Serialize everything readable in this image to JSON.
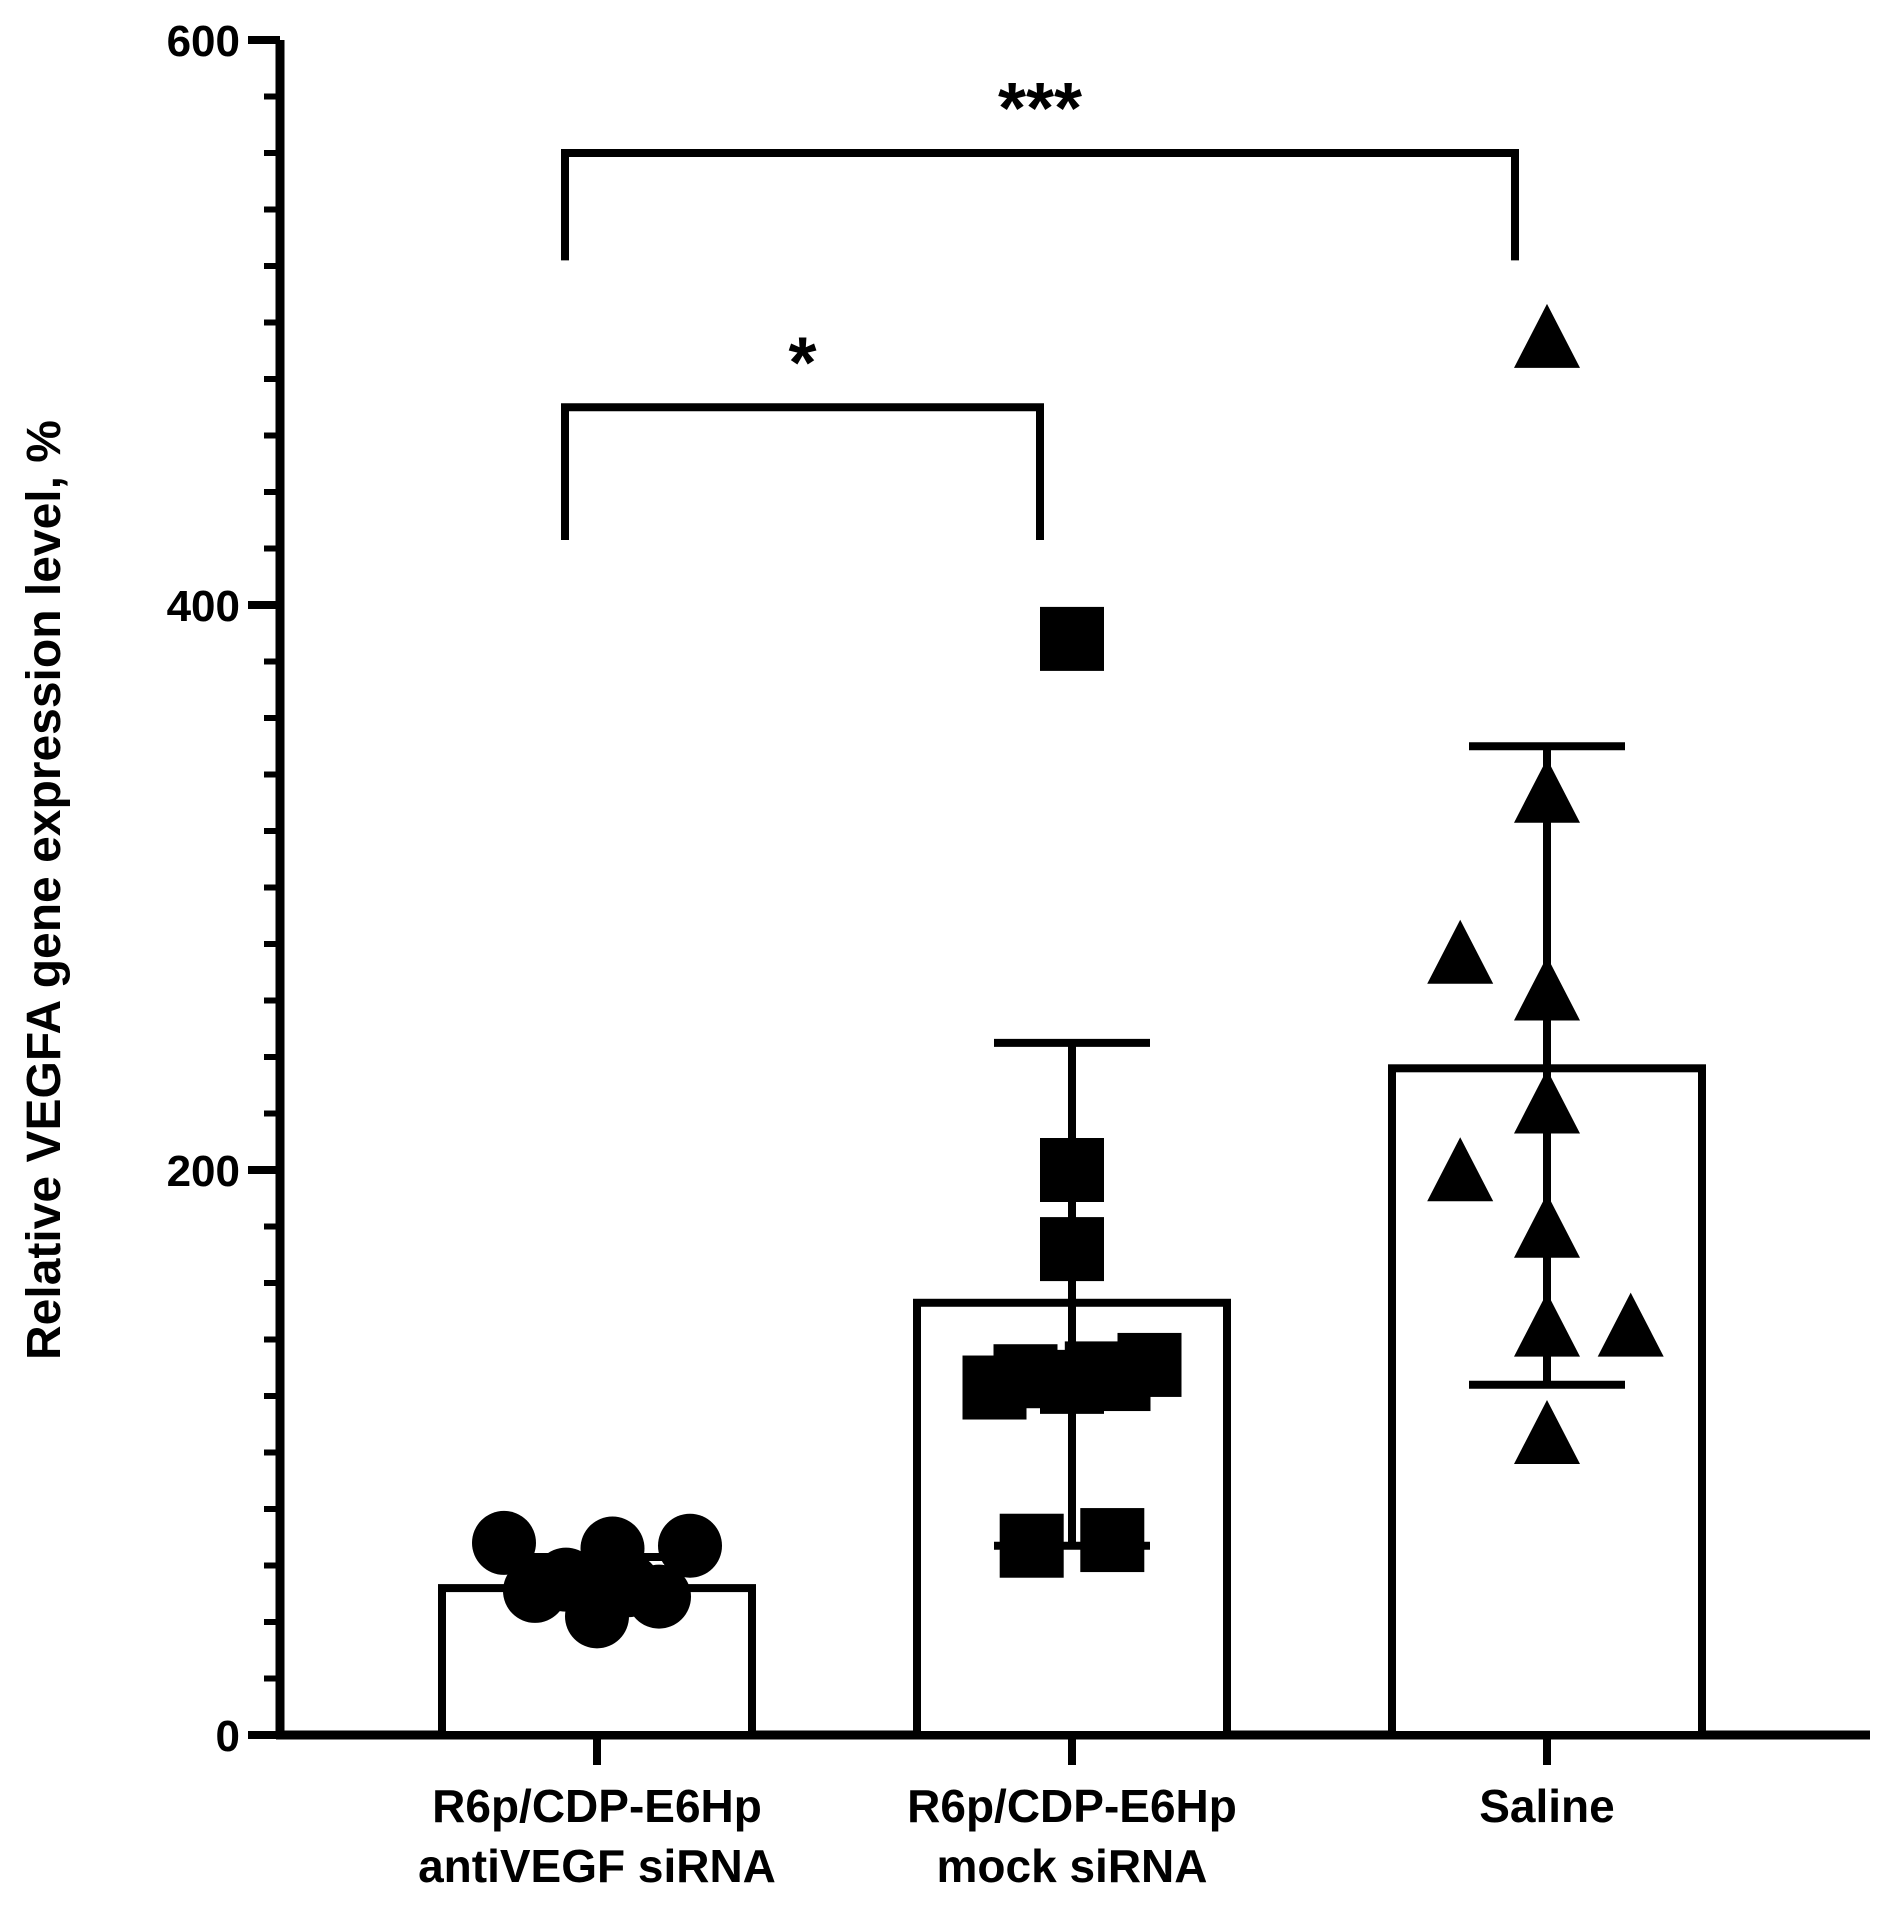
{
  "chart_data": {
    "type": "bar",
    "title": "",
    "xlabel": "",
    "ylabel": "Relative VEGFA gene expression level, %",
    "ylim": [
      0,
      600
    ],
    "yticks": [
      "0",
      "200",
      "400",
      "600"
    ],
    "y_minor_step": 20,
    "categories": [
      {
        "line1": "R6p/CDP-E6Hp",
        "line2": "antiVEGF siRNA"
      },
      {
        "line1": "R6p/CDP-E6Hp",
        "line2": "mock siRNA"
      },
      {
        "line1": "Saline",
        "line2": ""
      }
    ],
    "bars": [
      {
        "mean": 52,
        "err_low": 52,
        "err_high": 63,
        "marker": "circle",
        "points": [
          [
            -0.3,
            68
          ],
          [
            -0.2,
            51
          ],
          [
            -0.1,
            55
          ],
          [
            0.0,
            50
          ],
          [
            0.0,
            42
          ],
          [
            0.05,
            66
          ],
          [
            0.1,
            53
          ],
          [
            0.2,
            49
          ],
          [
            0.3,
            67
          ]
        ]
      },
      {
        "mean": 153,
        "err_low": 67,
        "err_high": 245,
        "marker": "square",
        "points": [
          [
            -0.25,
            123
          ],
          [
            -0.15,
            127
          ],
          [
            0.0,
            200
          ],
          [
            0.0,
            172
          ],
          [
            0.0,
            125
          ],
          [
            0.08,
            128
          ],
          [
            0.15,
            126
          ],
          [
            0.25,
            131
          ],
          [
            -0.13,
            67
          ],
          [
            0.13,
            69
          ],
          [
            0.0,
            388
          ]
        ]
      },
      {
        "mean": 236,
        "err_low": 124,
        "err_high": 350,
        "marker": "triangle",
        "points": [
          [
            0.0,
            493
          ],
          [
            0.0,
            332
          ],
          [
            -0.28,
            275
          ],
          [
            0.0,
            262
          ],
          [
            0.0,
            222
          ],
          [
            -0.28,
            198
          ],
          [
            0.0,
            178
          ],
          [
            0.27,
            143
          ],
          [
            0.0,
            143
          ],
          [
            0.0,
            105
          ]
        ]
      }
    ],
    "comparisons": [
      {
        "from": 0,
        "to": 1,
        "y": 470,
        "drop": 47,
        "label": "*"
      },
      {
        "from": 0,
        "to": 2,
        "y": 560,
        "drop": 38,
        "label": "***"
      }
    ],
    "grid": false,
    "legend": "none"
  }
}
